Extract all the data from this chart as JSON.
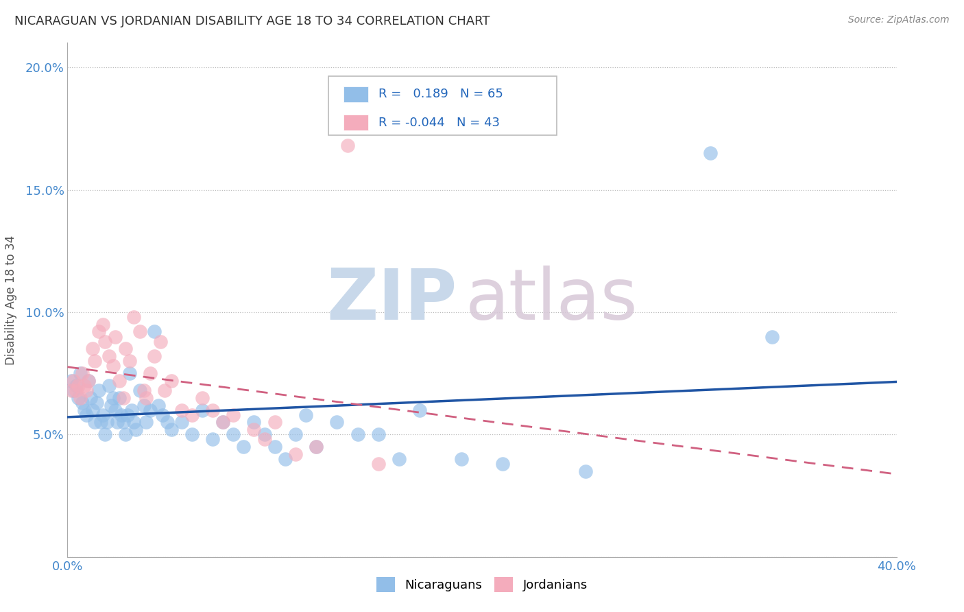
{
  "title": "NICARAGUAN VS JORDANIAN DISABILITY AGE 18 TO 34 CORRELATION CHART",
  "source": "Source: ZipAtlas.com",
  "ylabel": "Disability Age 18 to 34",
  "xlim": [
    0.0,
    0.4
  ],
  "ylim": [
    0.0,
    0.21
  ],
  "xticks": [
    0.0,
    0.05,
    0.1,
    0.15,
    0.2,
    0.25,
    0.3,
    0.35,
    0.4
  ],
  "xticklabels": [
    "0.0%",
    "",
    "",
    "",
    "",
    "",
    "",
    "",
    "40.0%"
  ],
  "yticks": [
    0.0,
    0.05,
    0.1,
    0.15,
    0.2
  ],
  "yticklabels": [
    "",
    "5.0%",
    "10.0%",
    "15.0%",
    "20.0%"
  ],
  "nicaraguan_color": "#92BEE8",
  "jordanian_color": "#F4ACBC",
  "line_blue": "#2055A4",
  "line_pink": "#D06080",
  "legend_r_blue": "0.189",
  "legend_n_blue": "65",
  "legend_r_pink": "-0.044",
  "legend_n_pink": "43",
  "nicaraguan_x": [
    0.002,
    0.003,
    0.004,
    0.005,
    0.006,
    0.007,
    0.008,
    0.009,
    0.01,
    0.011,
    0.012,
    0.013,
    0.014,
    0.015,
    0.016,
    0.017,
    0.018,
    0.019,
    0.02,
    0.021,
    0.022,
    0.023,
    0.024,
    0.025,
    0.026,
    0.027,
    0.028,
    0.029,
    0.03,
    0.031,
    0.032,
    0.033,
    0.035,
    0.037,
    0.038,
    0.04,
    0.042,
    0.044,
    0.046,
    0.048,
    0.05,
    0.055,
    0.06,
    0.065,
    0.07,
    0.075,
    0.08,
    0.085,
    0.09,
    0.095,
    0.1,
    0.105,
    0.11,
    0.115,
    0.12,
    0.13,
    0.14,
    0.15,
    0.16,
    0.17,
    0.19,
    0.21,
    0.25,
    0.31,
    0.34
  ],
  "nicaraguan_y": [
    0.072,
    0.068,
    0.07,
    0.065,
    0.075,
    0.063,
    0.06,
    0.058,
    0.072,
    0.065,
    0.06,
    0.055,
    0.063,
    0.068,
    0.055,
    0.058,
    0.05,
    0.055,
    0.07,
    0.062,
    0.065,
    0.06,
    0.055,
    0.065,
    0.058,
    0.055,
    0.05,
    0.058,
    0.075,
    0.06,
    0.055,
    0.052,
    0.068,
    0.062,
    0.055,
    0.06,
    0.092,
    0.062,
    0.058,
    0.055,
    0.052,
    0.055,
    0.05,
    0.06,
    0.048,
    0.055,
    0.05,
    0.045,
    0.055,
    0.05,
    0.045,
    0.04,
    0.05,
    0.058,
    0.045,
    0.055,
    0.05,
    0.05,
    0.04,
    0.06,
    0.04,
    0.038,
    0.035,
    0.165,
    0.09
  ],
  "jordanian_x": [
    0.002,
    0.003,
    0.004,
    0.005,
    0.006,
    0.007,
    0.008,
    0.009,
    0.01,
    0.012,
    0.013,
    0.015,
    0.017,
    0.018,
    0.02,
    0.022,
    0.023,
    0.025,
    0.027,
    0.028,
    0.03,
    0.032,
    0.035,
    0.037,
    0.038,
    0.04,
    0.042,
    0.045,
    0.047,
    0.05,
    0.055,
    0.06,
    0.065,
    0.07,
    0.075,
    0.08,
    0.09,
    0.095,
    0.1,
    0.11,
    0.12,
    0.135,
    0.15
  ],
  "jordanian_y": [
    0.068,
    0.072,
    0.068,
    0.07,
    0.065,
    0.075,
    0.07,
    0.068,
    0.072,
    0.085,
    0.08,
    0.092,
    0.095,
    0.088,
    0.082,
    0.078,
    0.09,
    0.072,
    0.065,
    0.085,
    0.08,
    0.098,
    0.092,
    0.068,
    0.065,
    0.075,
    0.082,
    0.088,
    0.068,
    0.072,
    0.06,
    0.058,
    0.065,
    0.06,
    0.055,
    0.058,
    0.052,
    0.048,
    0.055,
    0.042,
    0.045,
    0.168,
    0.038
  ]
}
